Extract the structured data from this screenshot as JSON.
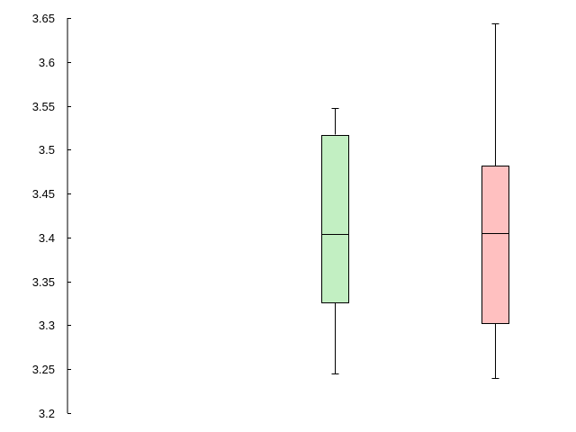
{
  "chart_data": {
    "type": "box",
    "title": "",
    "xlabel": "",
    "ylabel": "",
    "ylim": [
      3.2,
      3.65
    ],
    "yticks": [
      "3.2",
      "3.25",
      "3.3",
      "3.35",
      "3.4",
      "3.45",
      "3.5",
      "3.55",
      "3.6",
      "3.65"
    ],
    "grid": false,
    "series": [
      {
        "min": 3.245,
        "q1": 3.326,
        "median": 3.404,
        "q3": 3.517,
        "max": 3.547,
        "color": "#c2efc2"
      },
      {
        "min": 3.24,
        "q1": 3.302,
        "median": 3.405,
        "q3": 3.482,
        "max": 3.644,
        "color": "#ffc0c0"
      }
    ]
  }
}
